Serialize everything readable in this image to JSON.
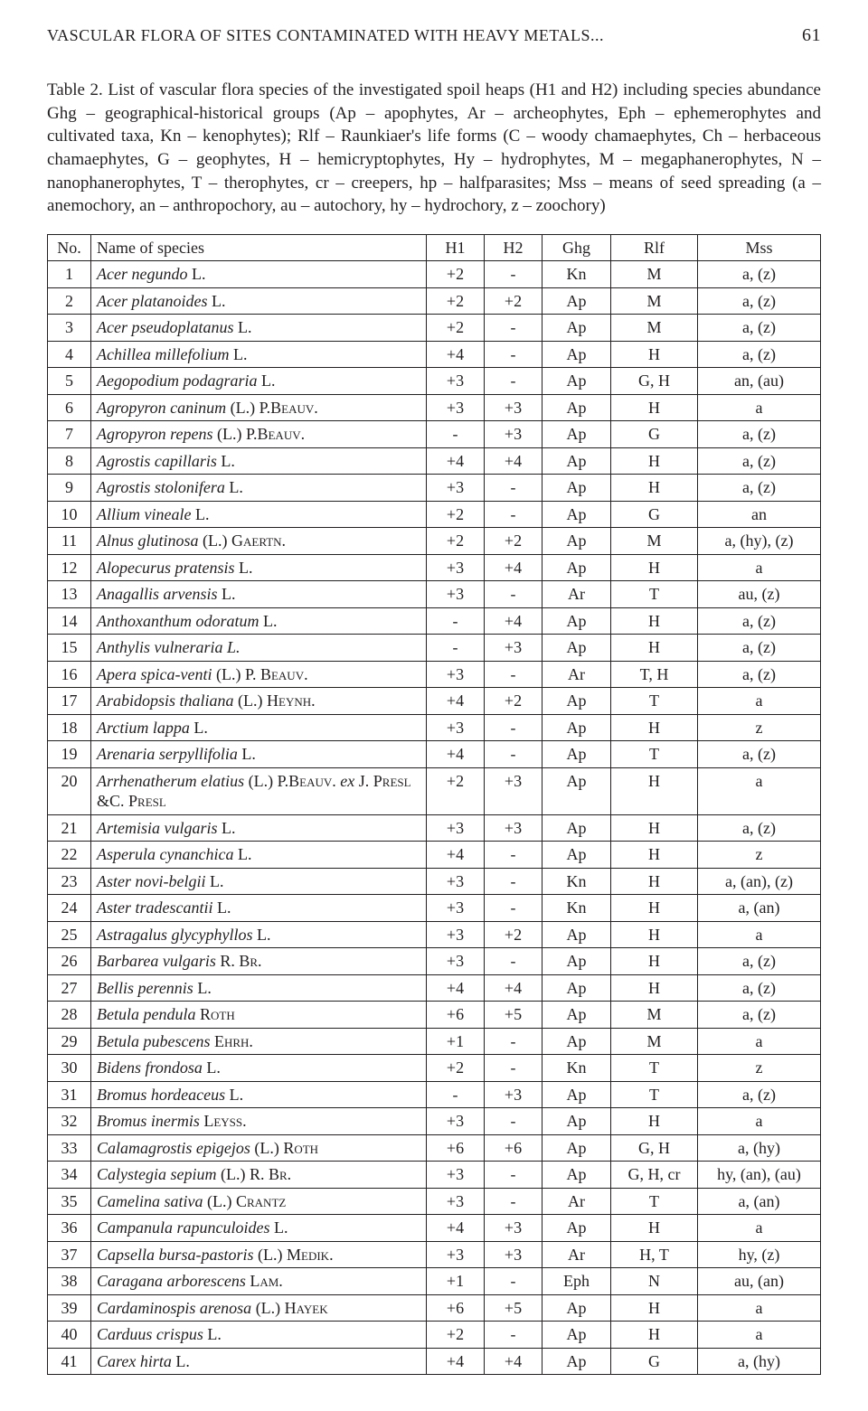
{
  "header": {
    "running_title": "VASCULAR FLORA OF SITES CONTAMINATED WITH HEAVY METALS...",
    "page_number": "61"
  },
  "caption": {
    "lead": "Table 2.",
    "text": " List of vascular flora species of the investigated spoil heaps (H1 and H2) including species abundance Ghg – geographical-historical groups (Ap – apophytes, Ar – archeophytes, Eph – ephemerophytes and cultivated taxa, Kn – kenophytes); Rlf – Raunkiaer's life forms (C – woody chamaephytes, Ch – herbaceous chamaephytes, G – geophytes, H – hemicryptophytes, Hy – hydrophytes, M – megaphanerophytes, N – nanophanerophytes, T – therophytes, cr – creepers, hp – halfparasites; Mss – means of seed spreading (a – anemochory, an – anthropochory, au – autochory, hy – hydrochory, z – zoochory)"
  },
  "table": {
    "columns": [
      "No.",
      "Name of species",
      "H1",
      "H2",
      "Ghg",
      "Rlf",
      "Mss"
    ],
    "rows": [
      {
        "no": "1",
        "name": "<em>Acer negundo</em> L.",
        "h1": "+2",
        "h2": "-",
        "ghg": "Kn",
        "rlf": "M",
        "mss": "a, (z)"
      },
      {
        "no": "2",
        "name": "<em>Acer platanoides</em> L.",
        "h1": "+2",
        "h2": "+2",
        "ghg": "Ap",
        "rlf": "M",
        "mss": "a, (z)"
      },
      {
        "no": "3",
        "name": "<em>Acer pseudoplatanus</em> L.",
        "h1": "+2",
        "h2": "-",
        "ghg": "Ap",
        "rlf": "M",
        "mss": "a, (z)"
      },
      {
        "no": "4",
        "name": "<em>Achillea millefolium</em> L.",
        "h1": "+4",
        "h2": "-",
        "ghg": "Ap",
        "rlf": "H",
        "mss": "a, (z)"
      },
      {
        "no": "5",
        "name": "<em>Aegopodium podagraria</em> L.",
        "h1": "+3",
        "h2": "-",
        "ghg": "Ap",
        "rlf": "G, H",
        "mss": "an, (au)"
      },
      {
        "no": "6",
        "name": "<em>Agropyron caninum</em> (L.) P.<span class=\"sc\">Beauv.</span>",
        "h1": "+3",
        "h2": "+3",
        "ghg": "Ap",
        "rlf": "H",
        "mss": "a"
      },
      {
        "no": "7",
        "name": "<em>Agropyron repens</em> (L.) P.<span class=\"sc\">Beauv.</span>",
        "h1": "-",
        "h2": "+3",
        "ghg": "Ap",
        "rlf": "G",
        "mss": "a, (z)"
      },
      {
        "no": "8",
        "name": "<em>Agrostis capillaris</em> L.",
        "h1": "+4",
        "h2": "+4",
        "ghg": "Ap",
        "rlf": "H",
        "mss": "a, (z)"
      },
      {
        "no": "9",
        "name": "<em>Agrostis stolonifera</em> L.",
        "h1": "+3",
        "h2": "-",
        "ghg": "Ap",
        "rlf": "H",
        "mss": "a, (z)"
      },
      {
        "no": "10",
        "name": "<em>Allium vineale</em> L.",
        "h1": "+2",
        "h2": "-",
        "ghg": "Ap",
        "rlf": "G",
        "mss": "an"
      },
      {
        "no": "11",
        "name": "<em>Alnus glutinosa</em> (L.) <span class=\"sc\">Gaertn.</span>",
        "h1": "+2",
        "h2": "+2",
        "ghg": "Ap",
        "rlf": "M",
        "mss": "a, (hy), (z)"
      },
      {
        "no": "12",
        "name": "<em>Alopecurus pratensis</em> L.",
        "h1": "+3",
        "h2": "+4",
        "ghg": "Ap",
        "rlf": "H",
        "mss": "a"
      },
      {
        "no": "13",
        "name": "<em>Anagallis arvensis</em> L.",
        "h1": "+3",
        "h2": "-",
        "ghg": "Ar",
        "rlf": "T",
        "mss": "au, (z)"
      },
      {
        "no": "14",
        "name": "<em>Anthoxanthum odoratum</em> L.",
        "h1": "-",
        "h2": "+4",
        "ghg": "Ap",
        "rlf": "H",
        "mss": "a, (z)"
      },
      {
        "no": "15",
        "name": "<em>Anthylis vulneraria L.</em>",
        "h1": "-",
        "h2": "+3",
        "ghg": "Ap",
        "rlf": "H",
        "mss": "a, (z)"
      },
      {
        "no": "16",
        "name": "<em>Apera spica-venti</em> (L.) P. <span class=\"sc\">Beauv.</span>",
        "h1": "+3",
        "h2": "-",
        "ghg": "Ar",
        "rlf": "T, H",
        "mss": "a, (z)"
      },
      {
        "no": "17",
        "name": "<em>Arabidopsis thaliana</em> (L.) <span class=\"sc\">Heynh.</span>",
        "h1": "+4",
        "h2": "+2",
        "ghg": "Ap",
        "rlf": "T",
        "mss": "a"
      },
      {
        "no": "18",
        "name": "<em>Arctium lappa</em> L.",
        "h1": "+3",
        "h2": "-",
        "ghg": "Ap",
        "rlf": "H",
        "mss": "z"
      },
      {
        "no": "19",
        "name": "<em>Arenaria serpyllifolia</em> L.",
        "h1": "+4",
        "h2": "-",
        "ghg": "Ap",
        "rlf": "T",
        "mss": "a, (z)"
      },
      {
        "no": "20",
        "name": "<em>Arrhenatherum elatius</em> (L.) P.<span class=\"sc\">Beauv.</span> <em>ex</em> J. <span class=\"sc\">Presl</span> &amp;C. <span class=\"sc\">Presl</span>",
        "h1": "+2",
        "h2": "+3",
        "ghg": "Ap",
        "rlf": "H",
        "mss": "a"
      },
      {
        "no": "21",
        "name": "<em>Artemisia vulgaris</em> L.",
        "h1": "+3",
        "h2": "+3",
        "ghg": "Ap",
        "rlf": "H",
        "mss": "a, (z)"
      },
      {
        "no": "22",
        "name": "<em>Asperula cynanchica</em> L.",
        "h1": "+4",
        "h2": "-",
        "ghg": "Ap",
        "rlf": "H",
        "mss": "z"
      },
      {
        "no": "23",
        "name": "<em>Aster novi-belgii</em> L.",
        "h1": "+3",
        "h2": "-",
        "ghg": "Kn",
        "rlf": "H",
        "mss": "a, (an), (z)"
      },
      {
        "no": "24",
        "name": "<em>Aster tradescantii</em> L.",
        "h1": "+3",
        "h2": "-",
        "ghg": "Kn",
        "rlf": "H",
        "mss": "a, (an)"
      },
      {
        "no": "25",
        "name": "<em>Astragalus glycyphyllos</em> L.",
        "h1": "+3",
        "h2": "+2",
        "ghg": "Ap",
        "rlf": "H",
        "mss": "a"
      },
      {
        "no": "26",
        "name": "<em>Barbarea vulgaris</em> R. <span class=\"sc\">Br.</span>",
        "h1": "+3",
        "h2": "-",
        "ghg": "Ap",
        "rlf": "H",
        "mss": "a, (z)"
      },
      {
        "no": "27",
        "name": "<em>Bellis perennis</em> L.",
        "h1": "+4",
        "h2": "+4",
        "ghg": "Ap",
        "rlf": "H",
        "mss": "a, (z)"
      },
      {
        "no": "28",
        "name": "<em>Betula pendula</em> <span class=\"sc\">Roth</span>",
        "h1": "+6",
        "h2": "+5",
        "ghg": "Ap",
        "rlf": "M",
        "mss": "a, (z)"
      },
      {
        "no": "29",
        "name": "<em>Betula pubescens</em> <span class=\"sc\">Ehrh.</span>",
        "h1": "+1",
        "h2": "-",
        "ghg": "Ap",
        "rlf": "M",
        "mss": "a"
      },
      {
        "no": "30",
        "name": "<em>Bidens frondosa</em> L.",
        "h1": "+2",
        "h2": "-",
        "ghg": "Kn",
        "rlf": "T",
        "mss": "z"
      },
      {
        "no": "31",
        "name": "<em>Bromus hordeaceus</em> L.",
        "h1": "-",
        "h2": "+3",
        "ghg": "Ap",
        "rlf": "T",
        "mss": "a, (z)"
      },
      {
        "no": "32",
        "name": "<em>Bromus inermis</em> <span class=\"sc\">Leyss.</span>",
        "h1": "+3",
        "h2": "-",
        "ghg": "Ap",
        "rlf": "H",
        "mss": "a"
      },
      {
        "no": "33",
        "name": "<em>Calamagrostis epigejos</em> (L.) <span class=\"sc\">Roth</span>",
        "h1": "+6",
        "h2": "+6",
        "ghg": "Ap",
        "rlf": "G, H",
        "mss": "a, (hy)"
      },
      {
        "no": "34",
        "name": "<em>Calystegia sepium</em> (L.) R. <span class=\"sc\">Br.</span>",
        "h1": "+3",
        "h2": "-",
        "ghg": "Ap",
        "rlf": "G, H, cr",
        "mss": "hy, (an), (au)"
      },
      {
        "no": "35",
        "name": "<em>Camelina sativa</em> (L.) <span class=\"sc\">Crantz</span>",
        "h1": "+3",
        "h2": "-",
        "ghg": "Ar",
        "rlf": "T",
        "mss": "a, (an)"
      },
      {
        "no": "36",
        "name": "<em>Campanula rapunculoides</em> L.",
        "h1": "+4",
        "h2": "+3",
        "ghg": "Ap",
        "rlf": "H",
        "mss": "a"
      },
      {
        "no": "37",
        "name": "<em>Capsella bursa-pastoris</em> (L.) <span class=\"sc\">Medik.</span>",
        "h1": "+3",
        "h2": "+3",
        "ghg": "Ar",
        "rlf": "H, T",
        "mss": "hy, (z)"
      },
      {
        "no": "38",
        "name": "<em>Caragana arborescens</em> <span class=\"sc\">Lam.</span>",
        "h1": "+1",
        "h2": "-",
        "ghg": "Eph",
        "rlf": "N",
        "mss": "au, (an)"
      },
      {
        "no": "39",
        "name": "<em>Cardaminospis arenosa</em> (L.) <span class=\"sc\">Hayek</span>",
        "h1": "+6",
        "h2": "+5",
        "ghg": "Ap",
        "rlf": "H",
        "mss": "a"
      },
      {
        "no": "40",
        "name": "<em>Carduus crispus</em> L.",
        "h1": "+2",
        "h2": "-",
        "ghg": "Ap",
        "rlf": "H",
        "mss": "a"
      },
      {
        "no": "41",
        "name": "<em>Carex hirta</em> L.",
        "h1": "+4",
        "h2": "+4",
        "ghg": "Ap",
        "rlf": "G",
        "mss": "a, (hy)"
      }
    ]
  }
}
